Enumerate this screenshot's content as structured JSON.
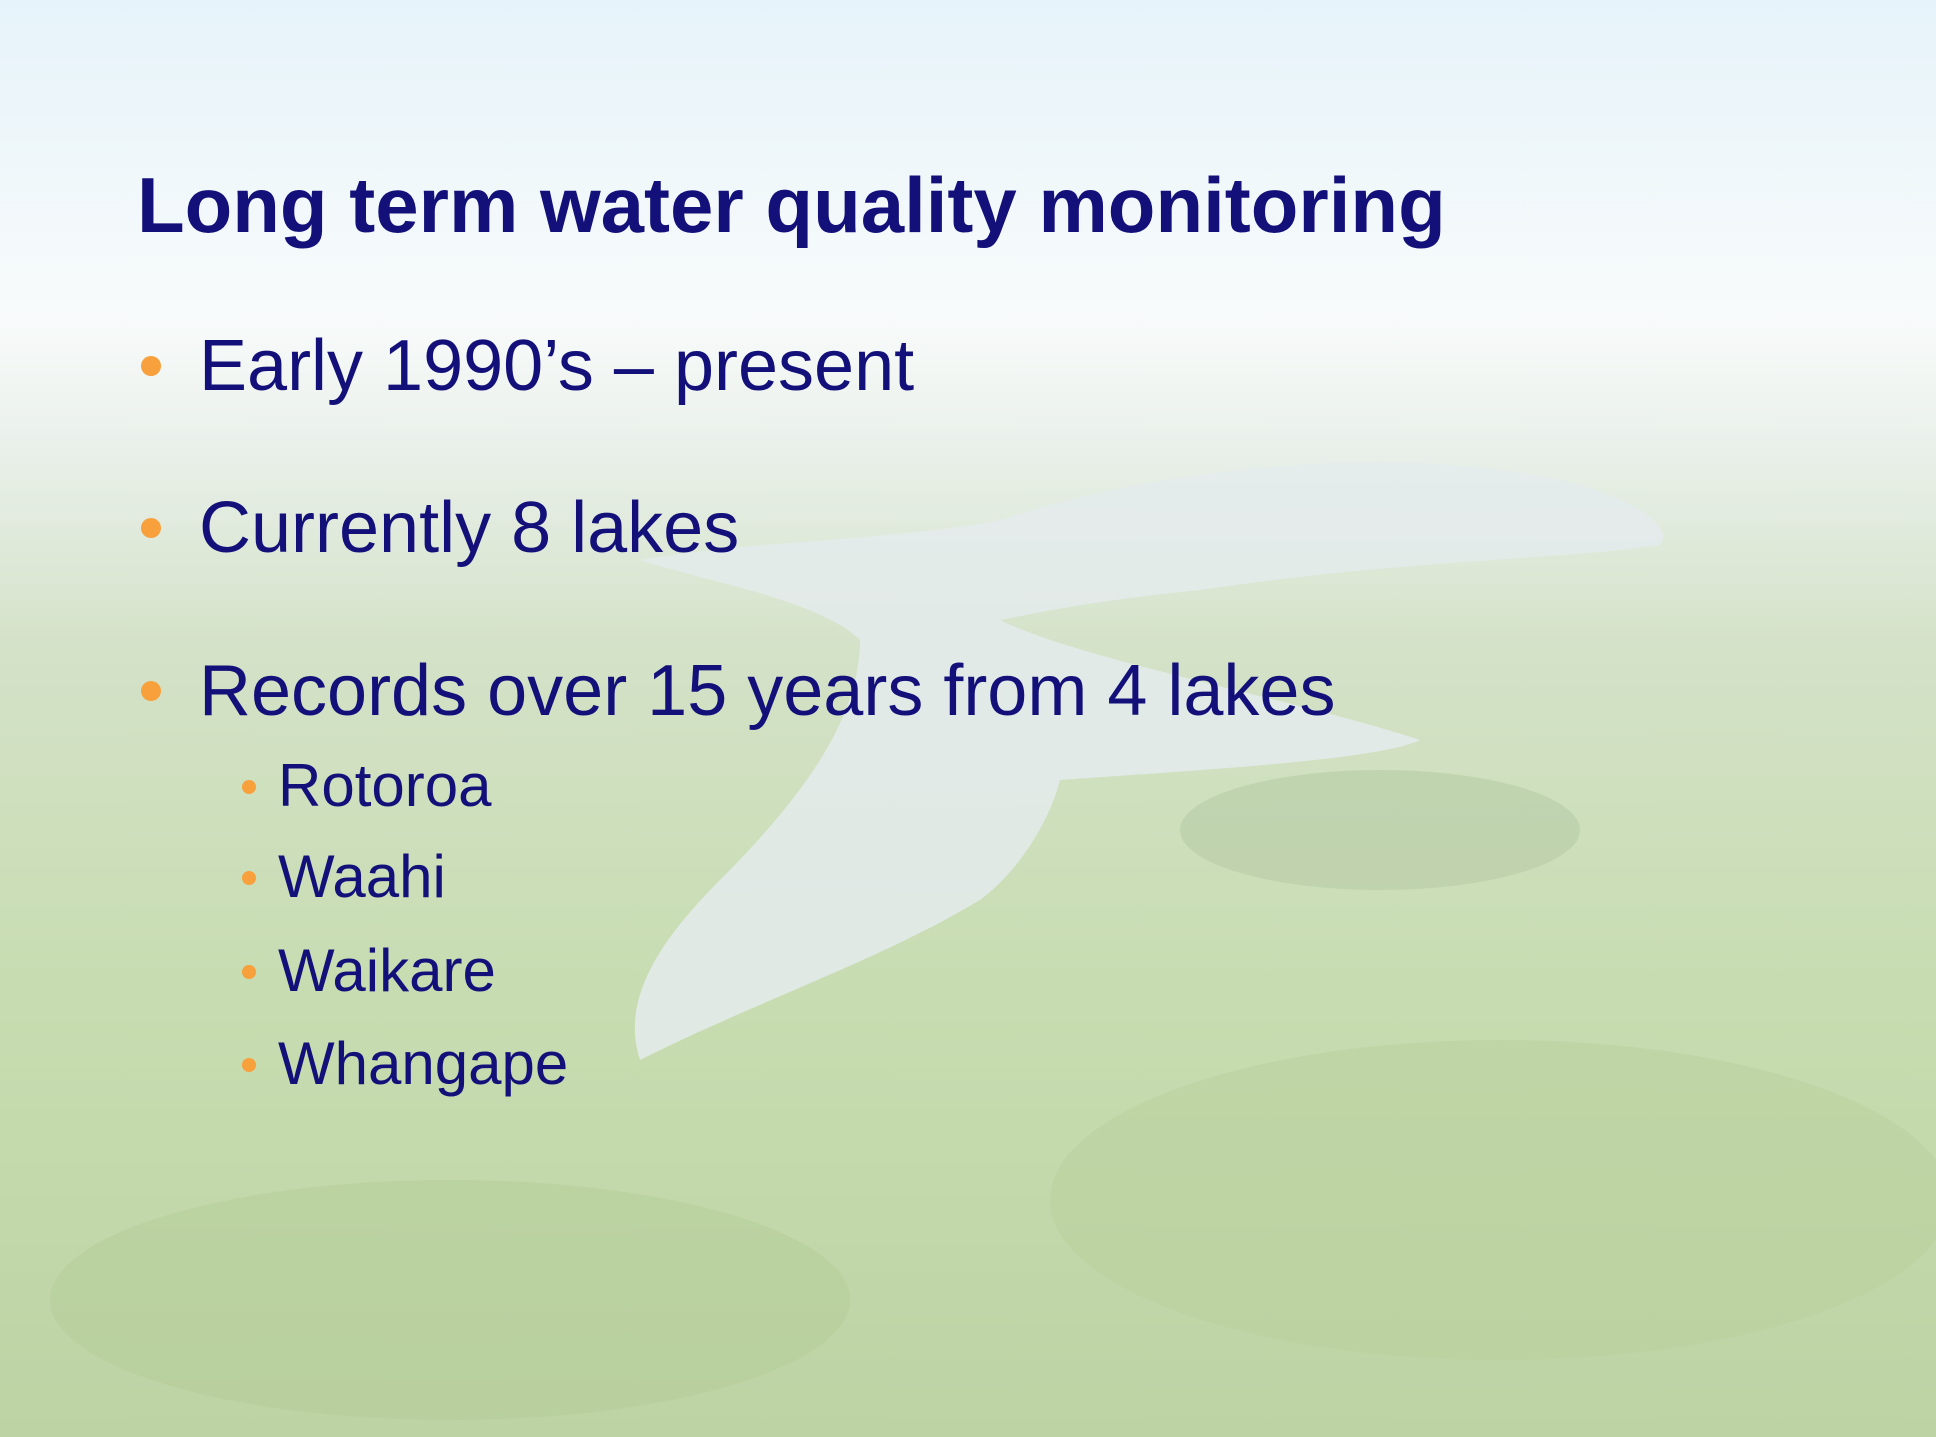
{
  "title": "Long term water quality monitoring",
  "bullets": [
    {
      "text": "Early 1990’s – present"
    },
    {
      "text": "Currently 8 lakes"
    },
    {
      "text": "Records over 15 years from 4 lakes",
      "items": [
        "Rotoroa",
        "Waahi",
        "Waikare",
        "Whangape"
      ]
    }
  ]
}
